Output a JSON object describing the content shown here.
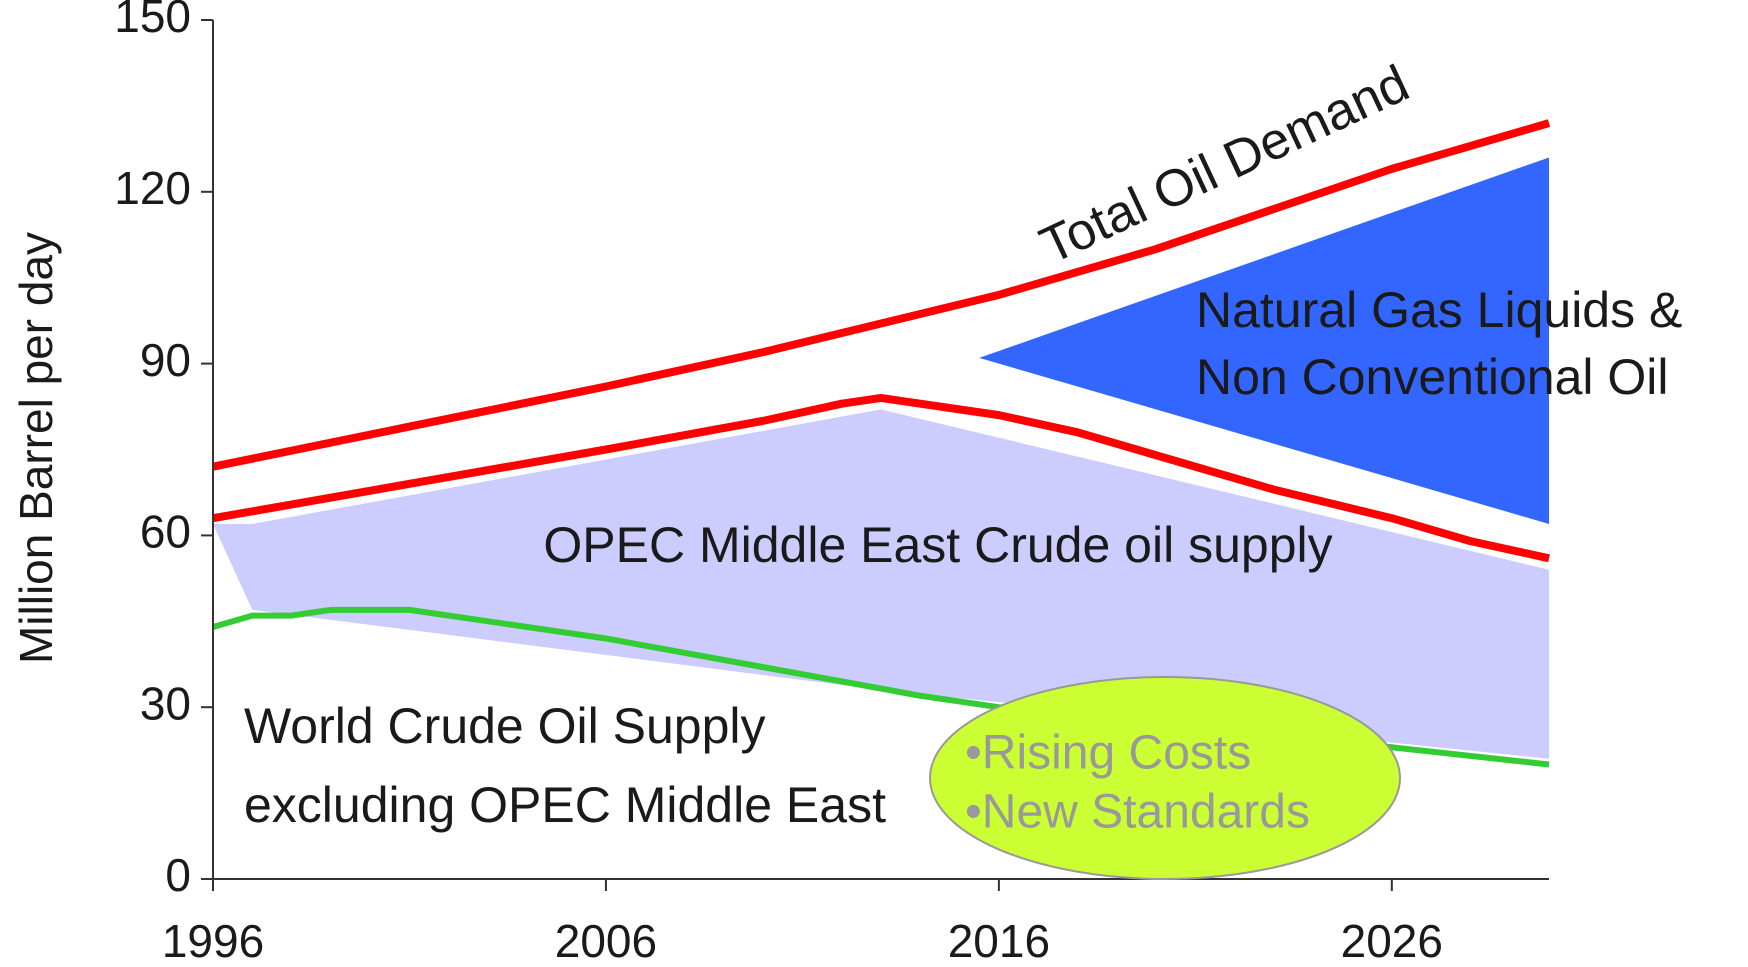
{
  "chart_data": {
    "type": "line",
    "ylabel": "Million Barrel per day",
    "xlim": [
      1996,
      2030
    ],
    "xticks": [
      1996,
      2006,
      2016,
      2026
    ],
    "ylim": [
      0,
      150
    ],
    "yticks": [
      0,
      30,
      60,
      90,
      120,
      150
    ],
    "series": [
      {
        "name": "Total Oil Demand",
        "color": "#ff0000",
        "x": [
          1996,
          2001,
          2006,
          2010,
          2013,
          2016,
          2020,
          2023,
          2026,
          2030
        ],
        "values": [
          72,
          79,
          86,
          92,
          97,
          102,
          110,
          117,
          124,
          132
        ]
      },
      {
        "color": "#ff0000",
        "x": [
          1996,
          2001,
          2006,
          2010,
          2012,
          2013,
          2014,
          2016,
          2018,
          2020,
          2023,
          2026,
          2028,
          2030
        ],
        "values": [
          63,
          69,
          75,
          80,
          83,
          84,
          83,
          81,
          78,
          74,
          68,
          63,
          59,
          56
        ]
      },
      {
        "color": "#33cc33",
        "x": [
          1996,
          1997,
          1998,
          1999,
          2001,
          2003,
          2006,
          2010,
          2014,
          2016,
          2020,
          2023,
          2026,
          2030
        ],
        "values": [
          44,
          46,
          46,
          47,
          47,
          45,
          42,
          37,
          32,
          30,
          27,
          25,
          23,
          20
        ]
      }
    ],
    "areas": [
      {
        "name": "OPEC Middle East Crude oil supply",
        "color": "#ccccff",
        "x": [
          1996,
          1997,
          2013,
          2030
        ],
        "upper": [
          62,
          62,
          82,
          54
        ],
        "lower": [
          62,
          47,
          33,
          21
        ]
      },
      {
        "name": "Natural Gas Liquids & Non Conventional Oil",
        "color": "#3366ff",
        "x": [
          2015.5,
          2030
        ],
        "upper": [
          91,
          126
        ],
        "lower": [
          91,
          62
        ]
      }
    ],
    "annotations": [
      "World Crude Oil Supply",
      "excluding OPEC Middle East",
      "•Rising Costs",
      "•New  Standards"
    ]
  }
}
